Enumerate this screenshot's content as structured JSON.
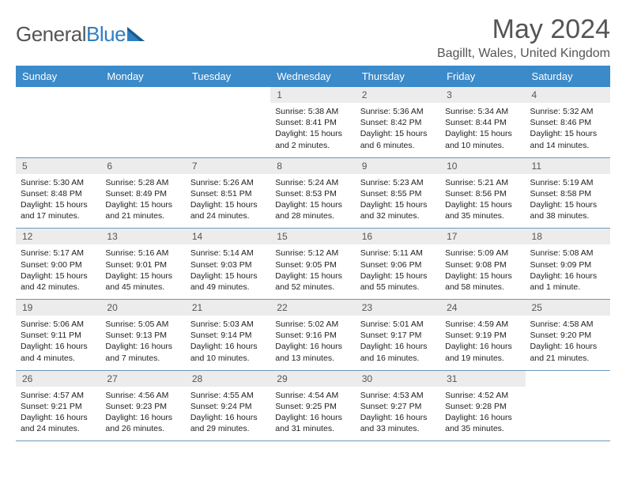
{
  "brand": {
    "part1": "General",
    "part2": "Blue"
  },
  "title": "May 2024",
  "location": "Bagillt, Wales, United Kingdom",
  "colors": {
    "header_bg": "#3b8aca",
    "header_text": "#ffffff",
    "daynum_bg": "#ececec",
    "rule": "#6b98bd",
    "body_text": "#222222",
    "title_text": "#555555"
  },
  "day_names": [
    "Sunday",
    "Monday",
    "Tuesday",
    "Wednesday",
    "Thursday",
    "Friday",
    "Saturday"
  ],
  "weeks": [
    [
      {
        "day": null
      },
      {
        "day": null
      },
      {
        "day": null
      },
      {
        "day": 1,
        "sunrise": "5:38 AM",
        "sunset": "8:41 PM",
        "daylight": "15 hours and 2 minutes."
      },
      {
        "day": 2,
        "sunrise": "5:36 AM",
        "sunset": "8:42 PM",
        "daylight": "15 hours and 6 minutes."
      },
      {
        "day": 3,
        "sunrise": "5:34 AM",
        "sunset": "8:44 PM",
        "daylight": "15 hours and 10 minutes."
      },
      {
        "day": 4,
        "sunrise": "5:32 AM",
        "sunset": "8:46 PM",
        "daylight": "15 hours and 14 minutes."
      }
    ],
    [
      {
        "day": 5,
        "sunrise": "5:30 AM",
        "sunset": "8:48 PM",
        "daylight": "15 hours and 17 minutes."
      },
      {
        "day": 6,
        "sunrise": "5:28 AM",
        "sunset": "8:49 PM",
        "daylight": "15 hours and 21 minutes."
      },
      {
        "day": 7,
        "sunrise": "5:26 AM",
        "sunset": "8:51 PM",
        "daylight": "15 hours and 24 minutes."
      },
      {
        "day": 8,
        "sunrise": "5:24 AM",
        "sunset": "8:53 PM",
        "daylight": "15 hours and 28 minutes."
      },
      {
        "day": 9,
        "sunrise": "5:23 AM",
        "sunset": "8:55 PM",
        "daylight": "15 hours and 32 minutes."
      },
      {
        "day": 10,
        "sunrise": "5:21 AM",
        "sunset": "8:56 PM",
        "daylight": "15 hours and 35 minutes."
      },
      {
        "day": 11,
        "sunrise": "5:19 AM",
        "sunset": "8:58 PM",
        "daylight": "15 hours and 38 minutes."
      }
    ],
    [
      {
        "day": 12,
        "sunrise": "5:17 AM",
        "sunset": "9:00 PM",
        "daylight": "15 hours and 42 minutes."
      },
      {
        "day": 13,
        "sunrise": "5:16 AM",
        "sunset": "9:01 PM",
        "daylight": "15 hours and 45 minutes."
      },
      {
        "day": 14,
        "sunrise": "5:14 AM",
        "sunset": "9:03 PM",
        "daylight": "15 hours and 49 minutes."
      },
      {
        "day": 15,
        "sunrise": "5:12 AM",
        "sunset": "9:05 PM",
        "daylight": "15 hours and 52 minutes."
      },
      {
        "day": 16,
        "sunrise": "5:11 AM",
        "sunset": "9:06 PM",
        "daylight": "15 hours and 55 minutes."
      },
      {
        "day": 17,
        "sunrise": "5:09 AM",
        "sunset": "9:08 PM",
        "daylight": "15 hours and 58 minutes."
      },
      {
        "day": 18,
        "sunrise": "5:08 AM",
        "sunset": "9:09 PM",
        "daylight": "16 hours and 1 minute."
      }
    ],
    [
      {
        "day": 19,
        "sunrise": "5:06 AM",
        "sunset": "9:11 PM",
        "daylight": "16 hours and 4 minutes."
      },
      {
        "day": 20,
        "sunrise": "5:05 AM",
        "sunset": "9:13 PM",
        "daylight": "16 hours and 7 minutes."
      },
      {
        "day": 21,
        "sunrise": "5:03 AM",
        "sunset": "9:14 PM",
        "daylight": "16 hours and 10 minutes."
      },
      {
        "day": 22,
        "sunrise": "5:02 AM",
        "sunset": "9:16 PM",
        "daylight": "16 hours and 13 minutes."
      },
      {
        "day": 23,
        "sunrise": "5:01 AM",
        "sunset": "9:17 PM",
        "daylight": "16 hours and 16 minutes."
      },
      {
        "day": 24,
        "sunrise": "4:59 AM",
        "sunset": "9:19 PM",
        "daylight": "16 hours and 19 minutes."
      },
      {
        "day": 25,
        "sunrise": "4:58 AM",
        "sunset": "9:20 PM",
        "daylight": "16 hours and 21 minutes."
      }
    ],
    [
      {
        "day": 26,
        "sunrise": "4:57 AM",
        "sunset": "9:21 PM",
        "daylight": "16 hours and 24 minutes."
      },
      {
        "day": 27,
        "sunrise": "4:56 AM",
        "sunset": "9:23 PM",
        "daylight": "16 hours and 26 minutes."
      },
      {
        "day": 28,
        "sunrise": "4:55 AM",
        "sunset": "9:24 PM",
        "daylight": "16 hours and 29 minutes."
      },
      {
        "day": 29,
        "sunrise": "4:54 AM",
        "sunset": "9:25 PM",
        "daylight": "16 hours and 31 minutes."
      },
      {
        "day": 30,
        "sunrise": "4:53 AM",
        "sunset": "9:27 PM",
        "daylight": "16 hours and 33 minutes."
      },
      {
        "day": 31,
        "sunrise": "4:52 AM",
        "sunset": "9:28 PM",
        "daylight": "16 hours and 35 minutes."
      },
      {
        "day": null
      }
    ]
  ]
}
